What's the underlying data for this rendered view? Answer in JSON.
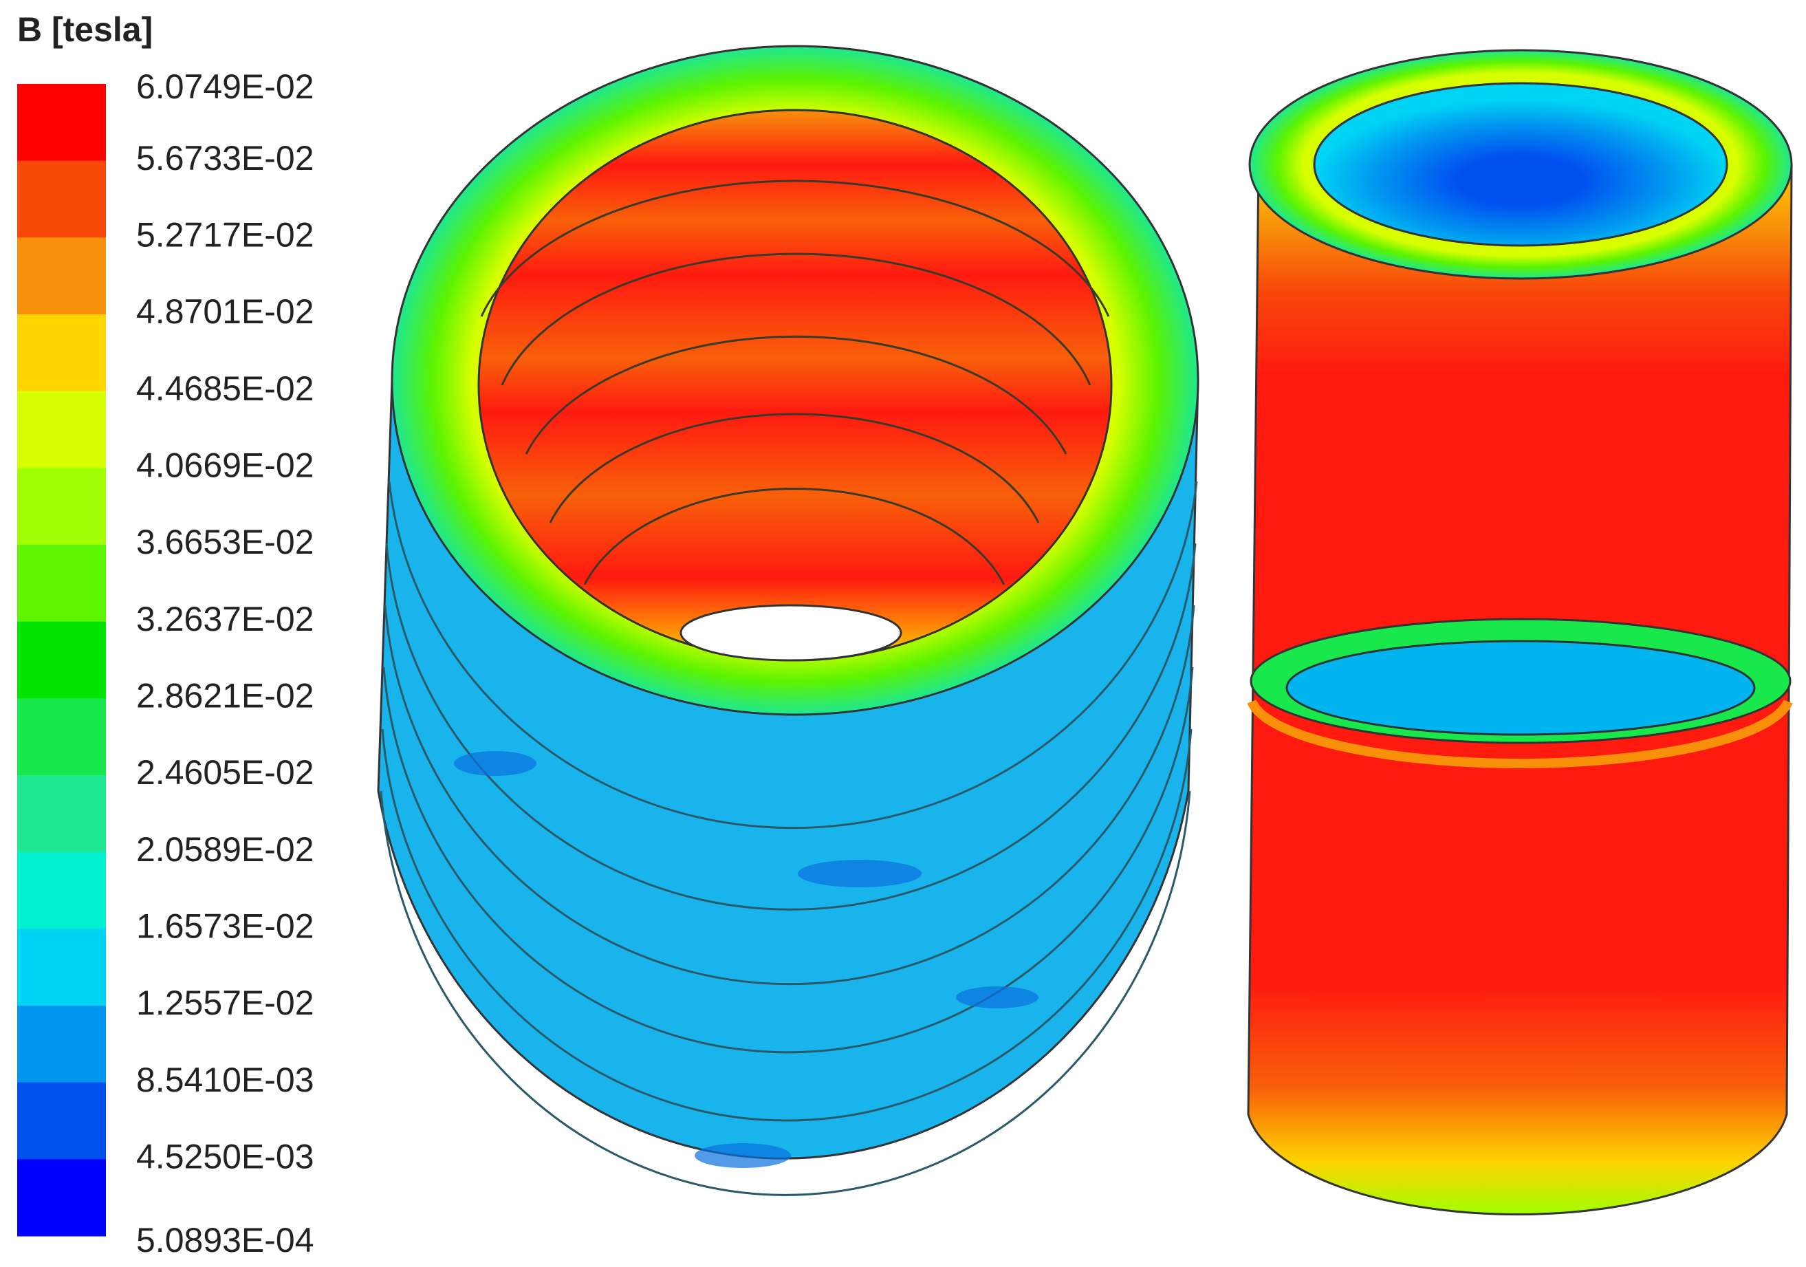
{
  "legend": {
    "title": "B [tesla]",
    "labels": [
      "6.0749E-02",
      "5.6733E-02",
      "5.2717E-02",
      "4.8701E-02",
      "4.4685E-02",
      "4.0669E-02",
      "3.6653E-02",
      "3.2637E-02",
      "2.8621E-02",
      "2.4605E-02",
      "2.0589E-02",
      "1.6573E-02",
      "1.2557E-02",
      "8.5410E-03",
      "4.5250E-03",
      "5.0893E-04"
    ],
    "colors": [
      "#ff0000",
      "#f8480a",
      "#f8900a",
      "#ffd400",
      "#d8ff00",
      "#a0ff00",
      "#5cf400",
      "#00e400",
      "#18e84c",
      "#1ee890",
      "#00f0d0",
      "#00d4f4",
      "#0096f0",
      "#0050f0",
      "#0000ff"
    ]
  }
}
